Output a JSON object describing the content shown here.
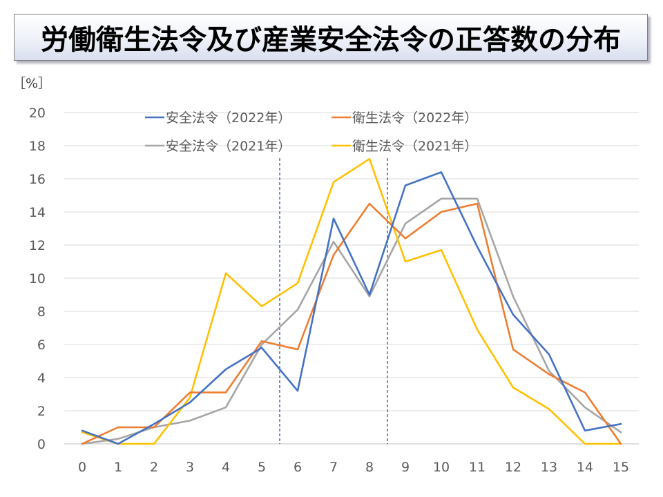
{
  "title": "労働衛生法令及び産業安全法令の正答数の分布",
  "chart_data": {
    "type": "line",
    "ylabel": "［%］",
    "ylim": [
      0,
      20
    ],
    "yticks": [
      0,
      2,
      4,
      6,
      8,
      10,
      12,
      14,
      16,
      18,
      20
    ],
    "x": [
      0,
      1,
      2,
      3,
      4,
      5,
      6,
      7,
      8,
      9,
      10,
      11,
      12,
      13,
      14,
      15
    ],
    "grid": true,
    "legend_position": "top",
    "reference_lines_x": [
      5.5,
      8.5
    ],
    "series": [
      {
        "name": "安全法令（2022年）",
        "color": "#4472c4",
        "values": [
          0.8,
          0.0,
          1.2,
          2.5,
          4.5,
          5.8,
          3.2,
          13.6,
          9.0,
          15.6,
          16.4,
          11.9,
          7.8,
          5.4,
          0.8,
          1.2
        ]
      },
      {
        "name": "衛生法令（2022年）",
        "color": "#ed7d31",
        "values": [
          0.0,
          1.0,
          1.0,
          3.1,
          3.1,
          6.2,
          5.7,
          11.4,
          14.5,
          12.4,
          14.0,
          14.5,
          5.7,
          4.2,
          3.1,
          0.0
        ]
      },
      {
        "name": "安全法令（2021年）",
        "color": "#a5a5a5",
        "values": [
          0.0,
          0.3,
          1.0,
          1.4,
          2.2,
          6.0,
          8.1,
          12.2,
          8.9,
          13.3,
          14.8,
          14.8,
          8.9,
          4.4,
          2.2,
          0.7
        ]
      },
      {
        "name": "衛生法令（2021年）",
        "color": "#ffc000",
        "values": [
          0.7,
          0.0,
          0.0,
          2.8,
          10.3,
          8.3,
          9.7,
          15.8,
          17.2,
          11.0,
          11.7,
          6.9,
          3.4,
          2.1,
          0.0,
          0.0
        ]
      }
    ]
  }
}
